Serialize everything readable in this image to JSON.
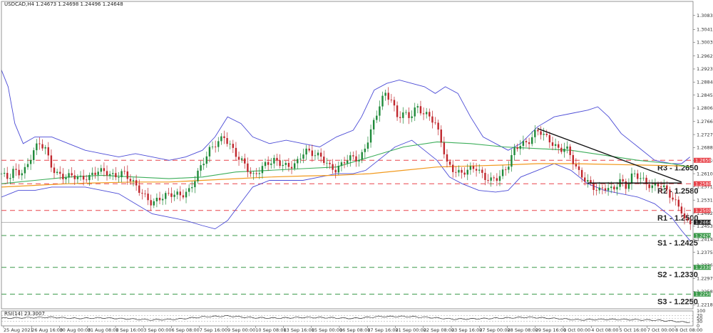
{
  "header": {
    "symbol_line": "USDCAD,H4  1.24673 1.24698 1.24496 1.24648"
  },
  "rsi_panel": {
    "label": "RSI(14) 23.3007",
    "levels": [
      70,
      50,
      30
    ],
    "ticks": [
      "100",
      "70",
      "50",
      "30",
      "0"
    ]
  },
  "colors": {
    "bullish": "#1f8a3a",
    "bearish": "#c0272d",
    "bollinger": "#4b4bd6",
    "ma_green": "#3cae5a",
    "ma_orange": "#f29a1e",
    "resistance": "#e8434a",
    "support": "#3b9a4a",
    "trendline": "#111111"
  },
  "chart_data": {
    "type": "candlestick",
    "ylim": [
      1.2206,
      1.3125
    ],
    "y_ticks": [
      "1.31190",
      "1.30830",
      "1.30410",
      "1.30030",
      "1.29620",
      "1.29230",
      "1.28840",
      "1.28450",
      "1.28060",
      "1.27660",
      "1.27270",
      "1.26880",
      "1.26490",
      "1.26100",
      "1.25710",
      "1.25310",
      "1.24920",
      "1.24530",
      "1.24140",
      "1.23750",
      "1.23360",
      "1.22970",
      "1.22580",
      "1.22180"
    ],
    "x_ticks": [
      "25 Aug 2021",
      "26 Aug 16:00",
      "30 Aug 00:00",
      "31 Aug 08:00",
      "1 Sep 16:00",
      "3 Sep 00:00",
      "6 Sep 08:00",
      "7 Sep 16:00",
      "9 Sep 00:00",
      "10 Sep 08:00",
      "13 Sep 16:00",
      "15 Sep 00:00",
      "16 Sep 08:00",
      "17 Sep 16:00",
      "21 Sep 00:00",
      "22 Sep 08:00",
      "23 Sep 16:00",
      "27 Sep 00:00",
      "28 Sep 08:00",
      "29 Sep 16:00",
      "1 Oct 00:00",
      "4 Oct 08:00",
      "5 Oct 16:00",
      "7 Oct 00:00",
      "8 Oct 08:00"
    ],
    "current_price": "1.24648",
    "levels": [
      {
        "name": "R3",
        "value": 1.265,
        "label": "R3 - 1.2650",
        "tag": "1.26500",
        "type": "resistance"
      },
      {
        "name": "R2",
        "value": 1.258,
        "label": "R2 - 1.2580",
        "tag": "1.25800",
        "type": "resistance"
      },
      {
        "name": "R1",
        "value": 1.25,
        "label": "R1 - 1.2500",
        "tag": "1.25000",
        "type": "resistance"
      },
      {
        "name": "S1",
        "value": 1.2425,
        "label": "S1 - 1.2425",
        "tag": "1.24250",
        "type": "support"
      },
      {
        "name": "S2",
        "value": 1.233,
        "label": "S2 - 1.2330",
        "tag": "1.23300",
        "type": "support"
      },
      {
        "name": "S3",
        "value": 1.225,
        "label": "S3 - 1.2250",
        "tag": "1.22500",
        "type": "support"
      }
    ],
    "close_path": [
      [
        0,
        1.261
      ],
      [
        8,
        1.2595
      ],
      [
        14,
        1.262
      ],
      [
        20,
        1.261
      ],
      [
        30,
        1.2625
      ],
      [
        38,
        1.268
      ],
      [
        45,
        1.27
      ],
      [
        52,
        1.269
      ],
      [
        58,
        1.264
      ],
      [
        65,
        1.261
      ],
      [
        75,
        1.26
      ],
      [
        85,
        1.2605
      ],
      [
        95,
        1.2595
      ],
      [
        105,
        1.26
      ],
      [
        115,
        1.262
      ],
      [
        125,
        1.2615
      ],
      [
        135,
        1.26
      ],
      [
        145,
        1.2615
      ],
      [
        155,
        1.259
      ],
      [
        165,
        1.256
      ],
      [
        172,
        1.254
      ],
      [
        180,
        1.252
      ],
      [
        188,
        1.2535
      ],
      [
        196,
        1.2545
      ],
      [
        205,
        1.255
      ],
      [
        215,
        1.2545
      ],
      [
        225,
        1.256
      ],
      [
        232,
        1.26
      ],
      [
        240,
        1.264
      ],
      [
        248,
        1.268
      ],
      [
        256,
        1.27
      ],
      [
        266,
        1.272
      ],
      [
        274,
        1.269
      ],
      [
        282,
        1.266
      ],
      [
        290,
        1.264
      ],
      [
        300,
        1.26
      ],
      [
        308,
        1.262
      ],
      [
        316,
        1.264
      ],
      [
        326,
        1.265
      ],
      [
        334,
        1.264
      ],
      [
        342,
        1.263
      ],
      [
        352,
        1.264
      ],
      [
        362,
        1.268
      ],
      [
        372,
        1.267
      ],
      [
        382,
        1.266
      ],
      [
        392,
        1.263
      ],
      [
        400,
        1.262
      ],
      [
        410,
        1.265
      ],
      [
        420,
        1.266
      ],
      [
        428,
        1.265
      ],
      [
        436,
        1.27
      ],
      [
        444,
        1.276
      ],
      [
        452,
        1.282
      ],
      [
        458,
        1.285
      ],
      [
        466,
        1.283
      ],
      [
        472,
        1.278
      ],
      [
        480,
        1.279
      ],
      [
        488,
        1.278
      ],
      [
        496,
        1.281
      ],
      [
        504,
        1.279
      ],
      [
        512,
        1.278
      ],
      [
        518,
        1.276
      ],
      [
        526,
        1.27
      ],
      [
        532,
        1.264
      ],
      [
        540,
        1.262
      ],
      [
        548,
        1.261
      ],
      [
        556,
        1.262
      ],
      [
        566,
        1.263
      ],
      [
        576,
        1.26
      ],
      [
        584,
        1.259
      ],
      [
        594,
        1.26
      ],
      [
        604,
        1.263
      ],
      [
        612,
        1.268
      ],
      [
        620,
        1.27
      ],
      [
        628,
        1.27
      ],
      [
        636,
        1.273
      ],
      [
        642,
        1.274
      ],
      [
        650,
        1.272
      ],
      [
        658,
        1.27
      ],
      [
        666,
        1.268
      ],
      [
        674,
        1.269
      ],
      [
        682,
        1.265
      ],
      [
        690,
        1.261
      ],
      [
        698,
        1.259
      ],
      [
        706,
        1.257
      ],
      [
        714,
        1.256
      ],
      [
        722,
        1.257
      ],
      [
        730,
        1.256
      ],
      [
        738,
        1.259
      ],
      [
        746,
        1.257
      ],
      [
        754,
        1.261
      ],
      [
        762,
        1.26
      ],
      [
        770,
        1.258
      ],
      [
        778,
        1.257
      ],
      [
        786,
        1.258
      ],
      [
        794,
        1.256
      ],
      [
        800,
        1.254
      ],
      [
        806,
        1.252
      ],
      [
        812,
        1.25
      ],
      [
        816,
        1.247
      ],
      [
        820,
        1.246
      ],
      [
        824,
        1.2465
      ]
    ],
    "bollinger_upper": [
      [
        0,
        1.292
      ],
      [
        8,
        1.287
      ],
      [
        16,
        1.276
      ],
      [
        26,
        1.27
      ],
      [
        40,
        1.272
      ],
      [
        60,
        1.272
      ],
      [
        80,
        1.27
      ],
      [
        100,
        1.268
      ],
      [
        120,
        1.267
      ],
      [
        140,
        1.266
      ],
      [
        160,
        1.267
      ],
      [
        180,
        1.266
      ],
      [
        200,
        1.265
      ],
      [
        220,
        1.266
      ],
      [
        240,
        1.268
      ],
      [
        255,
        1.272
      ],
      [
        270,
        1.278
      ],
      [
        286,
        1.276
      ],
      [
        300,
        1.272
      ],
      [
        320,
        1.27
      ],
      [
        340,
        1.271
      ],
      [
        360,
        1.27
      ],
      [
        380,
        1.269
      ],
      [
        400,
        1.272
      ],
      [
        420,
        1.274
      ],
      [
        430,
        1.278
      ],
      [
        445,
        1.286
      ],
      [
        460,
        1.288
      ],
      [
        475,
        1.289
      ],
      [
        490,
        1.288
      ],
      [
        505,
        1.287
      ],
      [
        518,
        1.285
      ],
      [
        530,
        1.287
      ],
      [
        545,
        1.285
      ],
      [
        560,
        1.278
      ],
      [
        575,
        1.272
      ],
      [
        590,
        1.27
      ],
      [
        605,
        1.268
      ],
      [
        620,
        1.27
      ],
      [
        640,
        1.275
      ],
      [
        660,
        1.278
      ],
      [
        680,
        1.279
      ],
      [
        700,
        1.28
      ],
      [
        712,
        1.281
      ],
      [
        725,
        1.278
      ],
      [
        740,
        1.273
      ],
      [
        760,
        1.269
      ],
      [
        780,
        1.265
      ],
      [
        800,
        1.264
      ],
      [
        812,
        1.264
      ],
      [
        822,
        1.266
      ]
    ],
    "bollinger_lower": [
      [
        0,
        1.254
      ],
      [
        10,
        1.255
      ],
      [
        20,
        1.256
      ],
      [
        40,
        1.256
      ],
      [
        60,
        1.257
      ],
      [
        80,
        1.257
      ],
      [
        100,
        1.257
      ],
      [
        120,
        1.256
      ],
      [
        140,
        1.255
      ],
      [
        160,
        1.252
      ],
      [
        180,
        1.249
      ],
      [
        200,
        1.248
      ],
      [
        220,
        1.247
      ],
      [
        240,
        1.2455
      ],
      [
        255,
        1.2445
      ],
      [
        270,
        1.247
      ],
      [
        285,
        1.252
      ],
      [
        300,
        1.257
      ],
      [
        320,
        1.259
      ],
      [
        340,
        1.259
      ],
      [
        360,
        1.259
      ],
      [
        380,
        1.26
      ],
      [
        400,
        1.261
      ],
      [
        420,
        1.261
      ],
      [
        435,
        1.262
      ],
      [
        450,
        1.265
      ],
      [
        470,
        1.269
      ],
      [
        490,
        1.271
      ],
      [
        505,
        1.268
      ],
      [
        520,
        1.265
      ],
      [
        535,
        1.26
      ],
      [
        550,
        1.258
      ],
      [
        570,
        1.256
      ],
      [
        590,
        1.2555
      ],
      [
        605,
        1.256
      ],
      [
        620,
        1.26
      ],
      [
        640,
        1.262
      ],
      [
        660,
        1.264
      ],
      [
        680,
        1.262
      ],
      [
        700,
        1.258
      ],
      [
        720,
        1.256
      ],
      [
        740,
        1.255
      ],
      [
        760,
        1.254
      ],
      [
        780,
        1.252
      ],
      [
        800,
        1.248
      ],
      [
        812,
        1.244
      ],
      [
        822,
        1.241
      ]
    ],
    "ma_green": [
      [
        0,
        1.258
      ],
      [
        40,
        1.259
      ],
      [
        80,
        1.26
      ],
      [
        120,
        1.2605
      ],
      [
        160,
        1.26
      ],
      [
        200,
        1.2595
      ],
      [
        240,
        1.26
      ],
      [
        280,
        1.2615
      ],
      [
        320,
        1.262
      ],
      [
        360,
        1.2625
      ],
      [
        400,
        1.263
      ],
      [
        440,
        1.266
      ],
      [
        480,
        1.269
      ],
      [
        520,
        1.2705
      ],
      [
        560,
        1.27
      ],
      [
        600,
        1.269
      ],
      [
        640,
        1.2685
      ],
      [
        680,
        1.268
      ],
      [
        720,
        1.2665
      ],
      [
        760,
        1.265
      ],
      [
        800,
        1.264
      ],
      [
        822,
        1.263
      ]
    ],
    "ma_orange": [
      [
        0,
        1.257
      ],
      [
        40,
        1.2575
      ],
      [
        80,
        1.258
      ],
      [
        120,
        1.2583
      ],
      [
        160,
        1.2585
      ],
      [
        200,
        1.2585
      ],
      [
        240,
        1.259
      ],
      [
        280,
        1.2595
      ],
      [
        320,
        1.26
      ],
      [
        360,
        1.2603
      ],
      [
        400,
        1.2605
      ],
      [
        440,
        1.261
      ],
      [
        480,
        1.262
      ],
      [
        520,
        1.263
      ],
      [
        560,
        1.2633
      ],
      [
        600,
        1.2636
      ],
      [
        640,
        1.264
      ],
      [
        680,
        1.264
      ],
      [
        720,
        1.2638
      ],
      [
        760,
        1.2636
      ],
      [
        800,
        1.2634
      ],
      [
        822,
        1.2632
      ]
    ],
    "trendline": [
      [
        640,
        1.2745
      ],
      [
        812,
        1.2585
      ]
    ],
    "support_segment": [
      [
        700,
        1.2582
      ],
      [
        812,
        1.2582
      ]
    ],
    "rsi_values": [
      [
        0,
        52
      ],
      [
        30,
        55
      ],
      [
        60,
        58
      ],
      [
        90,
        50
      ],
      [
        120,
        54
      ],
      [
        150,
        47
      ],
      [
        180,
        40
      ],
      [
        210,
        45
      ],
      [
        240,
        60
      ],
      [
        270,
        66
      ],
      [
        300,
        55
      ],
      [
        330,
        52
      ],
      [
        360,
        57
      ],
      [
        390,
        55
      ],
      [
        420,
        50
      ],
      [
        450,
        62
      ],
      [
        480,
        63
      ],
      [
        510,
        57
      ],
      [
        540,
        45
      ],
      [
        570,
        48
      ],
      [
        600,
        53
      ],
      [
        630,
        58
      ],
      [
        660,
        50
      ],
      [
        690,
        40
      ],
      [
        720,
        44
      ],
      [
        750,
        42
      ],
      [
        780,
        38
      ],
      [
        800,
        33
      ],
      [
        815,
        25
      ],
      [
        824,
        23
      ]
    ]
  }
}
